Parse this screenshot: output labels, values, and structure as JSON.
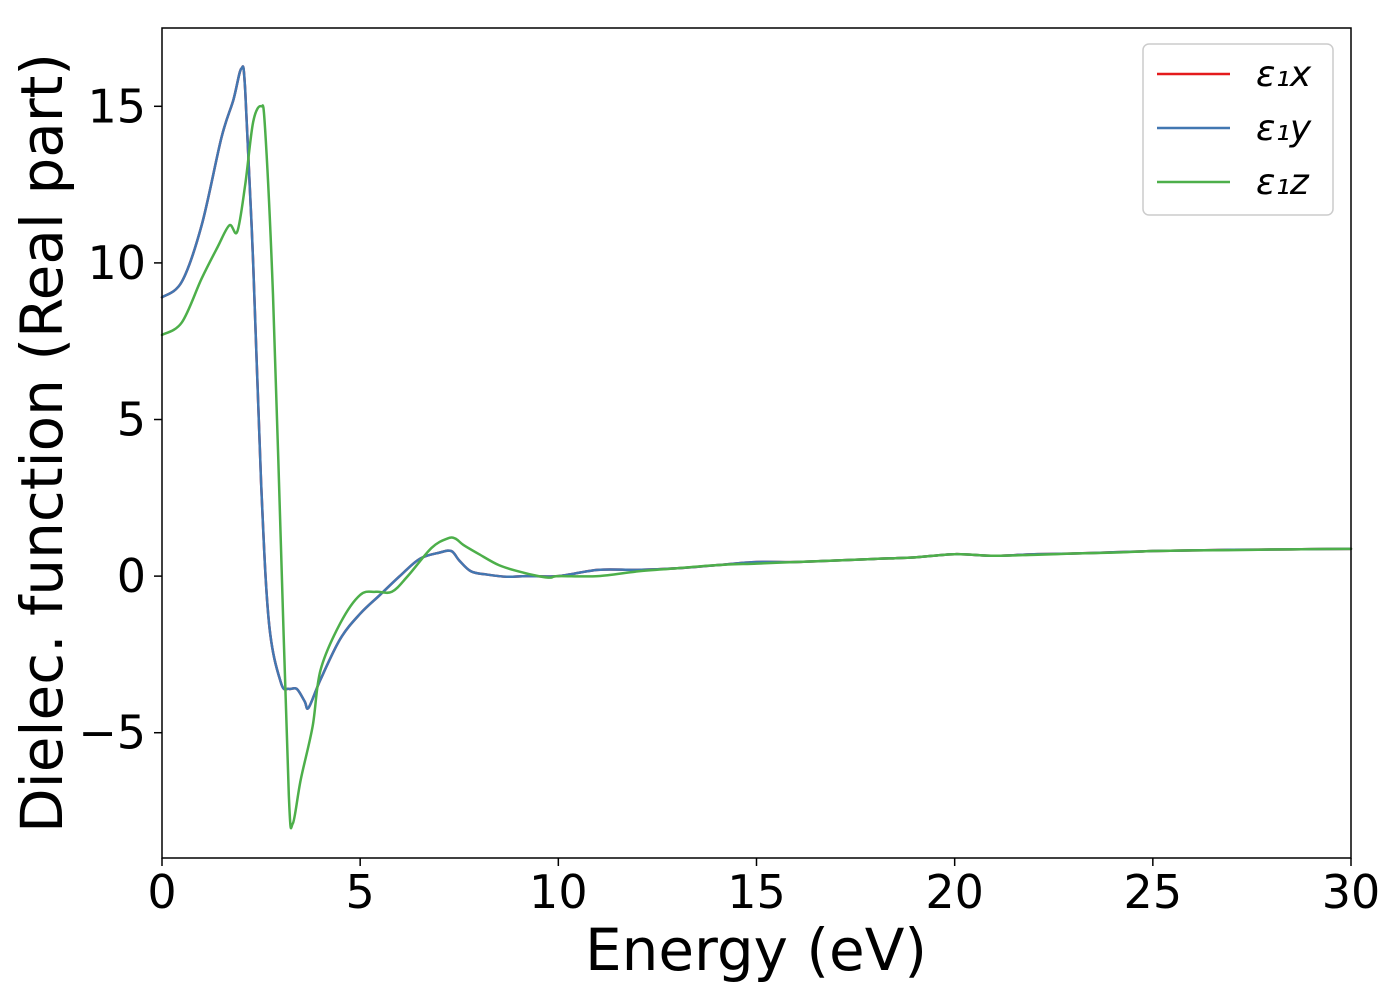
{
  "chart_data": {
    "type": "line",
    "title": "",
    "xlabel": "Energy (eV)",
    "ylabel": "Dielec. function (Real part)",
    "xlim": [
      0,
      30
    ],
    "ylim": [
      -9,
      17.5
    ],
    "xticks": [
      0,
      5,
      10,
      15,
      20,
      25,
      30
    ],
    "xtick_labels": [
      "0",
      "5",
      "10",
      "15",
      "20",
      "25",
      "30"
    ],
    "yticks": [
      -5,
      0,
      5,
      10,
      15
    ],
    "ytick_labels": [
      "−5",
      "0",
      "5",
      "10",
      "15"
    ],
    "grid": false,
    "legend_position": "top-right",
    "series": [
      {
        "name": "ε₁x",
        "color": "#e41a1c",
        "x": [
          0,
          0.5,
          1.0,
          1.5,
          1.8,
          2.0,
          2.1,
          2.3,
          2.5,
          2.7,
          3.0,
          3.2,
          3.4,
          3.6,
          3.7,
          4.0,
          4.5,
          5.0,
          5.5,
          6.0,
          6.5,
          7.0,
          7.3,
          7.5,
          7.8,
          8.2,
          8.7,
          9.2,
          10.0,
          11.0,
          12.0,
          13.0,
          14.0,
          15.0,
          16.0,
          17.0,
          18.0,
          19.0,
          20.0,
          21.0,
          22.0,
          23.0,
          24.0,
          25.0,
          26.0,
          27.0,
          28.0,
          29.0,
          30.0
        ],
        "y": [
          8.9,
          9.4,
          11.2,
          14.0,
          15.2,
          16.2,
          15.5,
          10.0,
          3.0,
          -1.5,
          -3.4,
          -3.6,
          -3.6,
          -4.0,
          -4.2,
          -3.3,
          -2.0,
          -1.2,
          -0.6,
          0.0,
          0.55,
          0.75,
          0.8,
          0.5,
          0.15,
          0.05,
          -0.02,
          0.0,
          0.0,
          0.2,
          0.2,
          0.25,
          0.35,
          0.45,
          0.45,
          0.5,
          0.55,
          0.6,
          0.7,
          0.65,
          0.7,
          0.72,
          0.76,
          0.8,
          0.82,
          0.84,
          0.85,
          0.86,
          0.87
        ]
      },
      {
        "name": "ε₁y",
        "color": "#4277b1",
        "x": [
          0,
          0.5,
          1.0,
          1.5,
          1.8,
          2.0,
          2.1,
          2.3,
          2.5,
          2.7,
          3.0,
          3.2,
          3.4,
          3.6,
          3.7,
          4.0,
          4.5,
          5.0,
          5.5,
          6.0,
          6.5,
          7.0,
          7.3,
          7.5,
          7.8,
          8.2,
          8.7,
          9.2,
          10.0,
          11.0,
          12.0,
          13.0,
          14.0,
          15.0,
          16.0,
          17.0,
          18.0,
          19.0,
          20.0,
          21.0,
          22.0,
          23.0,
          24.0,
          25.0,
          26.0,
          27.0,
          28.0,
          29.0,
          30.0
        ],
        "y": [
          8.9,
          9.4,
          11.2,
          14.0,
          15.2,
          16.2,
          15.5,
          10.0,
          3.0,
          -1.5,
          -3.4,
          -3.6,
          -3.6,
          -4.0,
          -4.2,
          -3.3,
          -2.0,
          -1.2,
          -0.6,
          0.0,
          0.55,
          0.75,
          0.8,
          0.5,
          0.15,
          0.05,
          -0.02,
          0.0,
          0.0,
          0.2,
          0.2,
          0.25,
          0.35,
          0.45,
          0.45,
          0.5,
          0.55,
          0.6,
          0.7,
          0.65,
          0.7,
          0.72,
          0.76,
          0.8,
          0.82,
          0.84,
          0.85,
          0.86,
          0.87
        ]
      },
      {
        "name": "ε₁z",
        "color": "#4daf4a",
        "x": [
          0,
          0.5,
          1.0,
          1.4,
          1.7,
          1.9,
          2.1,
          2.3,
          2.5,
          2.6,
          2.8,
          3.0,
          3.2,
          3.3,
          3.5,
          3.8,
          4.0,
          4.5,
          5.0,
          5.4,
          5.8,
          6.2,
          6.8,
          7.2,
          7.4,
          7.6,
          8.0,
          8.5,
          9.0,
          9.5,
          9.8,
          10.0,
          11.0,
          12.0,
          13.0,
          14.0,
          15.0,
          16.0,
          17.0,
          18.0,
          19.0,
          20.0,
          21.0,
          22.0,
          23.0,
          24.0,
          25.0,
          26.0,
          27.0,
          28.0,
          29.0,
          30.0
        ],
        "y": [
          7.7,
          8.1,
          9.5,
          10.5,
          11.2,
          11.0,
          12.5,
          14.5,
          15.0,
          14.3,
          9.0,
          1.0,
          -7.0,
          -7.9,
          -6.5,
          -4.8,
          -3.0,
          -1.5,
          -0.6,
          -0.5,
          -0.5,
          0.0,
          0.9,
          1.2,
          1.2,
          1.0,
          0.7,
          0.35,
          0.15,
          0.0,
          -0.05,
          0.0,
          0.0,
          0.15,
          0.25,
          0.35,
          0.4,
          0.45,
          0.5,
          0.55,
          0.6,
          0.7,
          0.65,
          0.68,
          0.72,
          0.75,
          0.8,
          0.82,
          0.83,
          0.85,
          0.86,
          0.87
        ]
      }
    ]
  }
}
